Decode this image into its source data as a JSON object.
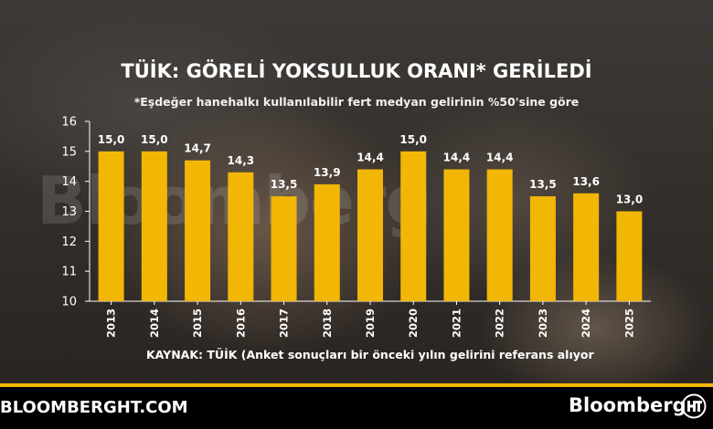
{
  "header": {
    "title": "TÜİK: GÖRELİ YOKSULLUK ORANI* GERİLEDİ",
    "subtitle": "*Eşdeğer hanehalkı kullanılabilir fert medyan gelirinin %50'sine göre"
  },
  "watermark": "Bloomberg",
  "source_note": "KAYNAK: TÜİK (Anket sonuçları bir önceki yılın gelirini referans alıyor",
  "footer": {
    "site": "BLOOMBERGHT.COM",
    "brand": "Bloomberg"
  },
  "colors": {
    "bar": "#f2b705",
    "axis_text": "#ffffff",
    "footer_bg": "#000000"
  },
  "chart_data": {
    "type": "bar",
    "categories": [
      "2013",
      "2014",
      "2015",
      "2016",
      "2017",
      "2018",
      "2019",
      "2020",
      "2021",
      "2022",
      "2023",
      "2024",
      "2025"
    ],
    "values": [
      15.0,
      15.0,
      14.7,
      14.3,
      13.5,
      13.9,
      14.4,
      15.0,
      14.4,
      14.4,
      13.5,
      13.6,
      13.0
    ],
    "value_labels": [
      "15,0",
      "15,0",
      "14,7",
      "14,3",
      "13,5",
      "13,9",
      "14,4",
      "15,0",
      "14,4",
      "14,4",
      "13,5",
      "13,6",
      "13,0"
    ],
    "ylim": [
      10,
      16
    ],
    "yticks": [
      "10",
      "11",
      "12",
      "13",
      "14",
      "15",
      "16"
    ],
    "grid": false,
    "title": "TÜİK: GÖRELİ YOKSULLUK ORANI* GERİLEDİ",
    "subtitle": "*Eşdeğer hanehalkı kullanılabilir fert medyan gelirinin %50'sine göre",
    "xlabel": "",
    "ylabel": ""
  }
}
